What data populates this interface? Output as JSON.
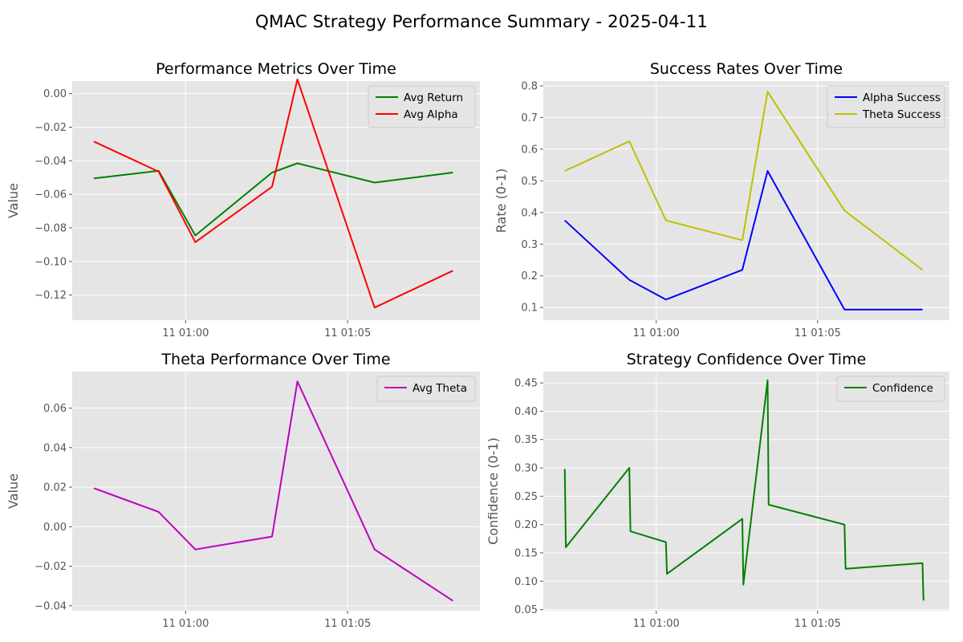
{
  "figure": {
    "title": "QMAC Strategy Performance Summary - 2025-04-11",
    "background": "#ffffff",
    "axes_background": "#e5e5e5",
    "grid_color": "#ffffff",
    "tick_color": "#555555"
  },
  "x_axis": {
    "type": "time",
    "unit": "minute",
    "range": [
      "00:56:30",
      "01:09:05"
    ],
    "ticks": [
      {
        "time": "01:00:00",
        "label": "11 01:00"
      },
      {
        "time": "01:05:00",
        "label": "11 01:05"
      }
    ]
  },
  "chart_data": [
    {
      "id": "metrics",
      "type": "line",
      "title": "Performance Metrics Over Time",
      "xlabel": "",
      "ylabel": "Value",
      "ylim": [
        -0.135,
        0.0075
      ],
      "yticks": [
        -0.12,
        -0.1,
        -0.08,
        -0.06,
        -0.04,
        -0.02,
        0.0
      ],
      "ytick_labels": [
        "−0.12",
        "−0.10",
        "−0.08",
        "−0.06",
        "−0.04",
        "−0.02",
        "0.00"
      ],
      "grid": true,
      "legend": "top-right",
      "series": [
        {
          "name": "Avg Return",
          "color": "#008000",
          "points": [
            {
              "t": "00:57:10",
              "y": -0.0505
            },
            {
              "t": "00:59:10",
              "y": -0.046
            },
            {
              "t": "01:00:18",
              "y": -0.0845
            },
            {
              "t": "01:02:40",
              "y": -0.047
            },
            {
              "t": "01:03:27",
              "y": -0.0415
            },
            {
              "t": "01:05:50",
              "y": -0.053
            },
            {
              "t": "01:08:15",
              "y": -0.047
            }
          ]
        },
        {
          "name": "Avg Alpha",
          "color": "#ff0000",
          "points": [
            {
              "t": "00:57:10",
              "y": -0.0285
            },
            {
              "t": "00:59:10",
              "y": -0.0465
            },
            {
              "t": "01:00:18",
              "y": -0.0885
            },
            {
              "t": "01:02:40",
              "y": -0.0555
            },
            {
              "t": "01:03:27",
              "y": 0.0085
            },
            {
              "t": "01:05:50",
              "y": -0.1275
            },
            {
              "t": "01:08:15",
              "y": -0.1055
            }
          ]
        }
      ]
    },
    {
      "id": "success",
      "type": "line",
      "title": "Success Rates Over Time",
      "xlabel": "",
      "ylabel": "Rate (0-1)",
      "ylim": [
        0.06,
        0.815
      ],
      "yticks": [
        0.1,
        0.2,
        0.3,
        0.4,
        0.5,
        0.6,
        0.7,
        0.8
      ],
      "ytick_labels": [
        "0.1",
        "0.2",
        "0.3",
        "0.4",
        "0.5",
        "0.6",
        "0.7",
        "0.8"
      ],
      "grid": true,
      "legend": "top-right",
      "series": [
        {
          "name": "Alpha Success",
          "color": "#0000ff",
          "points": [
            {
              "t": "00:57:10",
              "y": 0.375
            },
            {
              "t": "00:59:10",
              "y": 0.1875
            },
            {
              "t": "01:00:18",
              "y": 0.125
            },
            {
              "t": "01:02:40",
              "y": 0.21875
            },
            {
              "t": "01:03:27",
              "y": 0.53125
            },
            {
              "t": "01:05:50",
              "y": 0.09375
            },
            {
              "t": "01:08:15",
              "y": 0.09375
            }
          ]
        },
        {
          "name": "Theta Success",
          "color": "#bfbf00",
          "points": [
            {
              "t": "00:57:10",
              "y": 0.53125
            },
            {
              "t": "00:59:10",
              "y": 0.625
            },
            {
              "t": "01:00:18",
              "y": 0.375
            },
            {
              "t": "01:02:40",
              "y": 0.3125
            },
            {
              "t": "01:03:27",
              "y": 0.78125
            },
            {
              "t": "01:05:50",
              "y": 0.40625
            },
            {
              "t": "01:08:15",
              "y": 0.21875
            }
          ]
        }
      ]
    },
    {
      "id": "theta",
      "type": "line",
      "title": "Theta Performance Over Time",
      "xlabel": "",
      "ylabel": "Value",
      "ylim": [
        -0.0425,
        0.0785
      ],
      "yticks": [
        -0.04,
        -0.02,
        0.0,
        0.02,
        0.04,
        0.06
      ],
      "ytick_labels": [
        "−0.04",
        "−0.02",
        "0.00",
        "0.02",
        "0.04",
        "0.06"
      ],
      "grid": true,
      "legend": "top-right",
      "series": [
        {
          "name": "Avg Theta",
          "color": "#bf00bf",
          "points": [
            {
              "t": "00:57:10",
              "y": 0.0195
            },
            {
              "t": "00:59:10",
              "y": 0.0075
            },
            {
              "t": "01:00:18",
              "y": -0.0115
            },
            {
              "t": "01:02:40",
              "y": -0.005
            },
            {
              "t": "01:03:27",
              "y": 0.0735
            },
            {
              "t": "01:05:50",
              "y": -0.0115
            },
            {
              "t": "01:08:15",
              "y": -0.0375
            }
          ]
        }
      ]
    },
    {
      "id": "confidence",
      "type": "line",
      "title": "Strategy Confidence Over Time",
      "xlabel": "",
      "ylabel": "Confidence (0-1)",
      "ylim": [
        0.048,
        0.47
      ],
      "yticks": [
        0.05,
        0.1,
        0.15,
        0.2,
        0.25,
        0.3,
        0.35,
        0.4,
        0.45
      ],
      "ytick_labels": [
        "0.05",
        "0.10",
        "0.15",
        "0.20",
        "0.25",
        "0.30",
        "0.35",
        "0.40",
        "0.45"
      ],
      "grid": true,
      "legend": "top-right",
      "series": [
        {
          "name": "Confidence",
          "color": "#008000",
          "points": [
            {
              "t": "00:57:10",
              "y": 0.298
            },
            {
              "t": "00:57:12",
              "y": 0.16
            },
            {
              "t": "00:59:10",
              "y": 0.3
            },
            {
              "t": "00:59:12",
              "y": 0.188
            },
            {
              "t": "01:00:18",
              "y": 0.169
            },
            {
              "t": "01:00:20",
              "y": 0.113
            },
            {
              "t": "01:02:40",
              "y": 0.21
            },
            {
              "t": "01:02:42",
              "y": 0.094
            },
            {
              "t": "01:03:27",
              "y": 0.455
            },
            {
              "t": "01:03:29",
              "y": 0.235
            },
            {
              "t": "01:05:50",
              "y": 0.2
            },
            {
              "t": "01:05:52",
              "y": 0.122
            },
            {
              "t": "01:08:15",
              "y": 0.132
            },
            {
              "t": "01:08:17",
              "y": 0.066
            }
          ]
        }
      ]
    }
  ]
}
